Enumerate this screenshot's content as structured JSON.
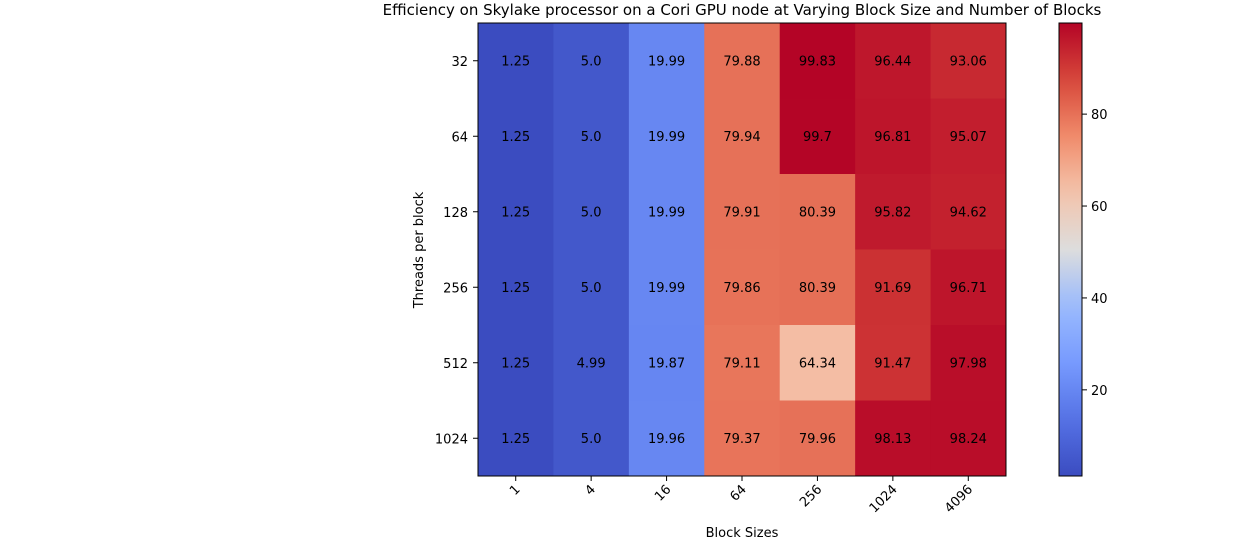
{
  "chart_data": {
    "type": "heatmap",
    "title": "Efficiency on Skylake processor on a Cori GPU node at Varying Block Size and Number of Blocks",
    "xlabel": "Block Sizes",
    "ylabel": "Threads per block",
    "x_categories": [
      "1",
      "4",
      "16",
      "64",
      "256",
      "1024",
      "4096"
    ],
    "y_categories": [
      "32",
      "64",
      "128",
      "256",
      "512",
      "1024"
    ],
    "values": [
      [
        1.25,
        5.0,
        19.99,
        79.88,
        99.83,
        96.44,
        93.06
      ],
      [
        1.25,
        5.0,
        19.99,
        79.94,
        99.7,
        96.81,
        95.07
      ],
      [
        1.25,
        5.0,
        19.99,
        79.91,
        80.39,
        95.82,
        94.62
      ],
      [
        1.25,
        5.0,
        19.99,
        79.86,
        80.39,
        91.69,
        96.71
      ],
      [
        1.25,
        4.99,
        19.87,
        79.11,
        64.34,
        91.47,
        97.98
      ],
      [
        1.25,
        5.0,
        19.96,
        79.37,
        79.96,
        98.13,
        98.24
      ]
    ],
    "value_labels": [
      [
        "1.25",
        "5.0",
        "19.99",
        "79.88",
        "99.83",
        "96.44",
        "93.06"
      ],
      [
        "1.25",
        "5.0",
        "19.99",
        "79.94",
        "99.7",
        "96.81",
        "95.07"
      ],
      [
        "1.25",
        "5.0",
        "19.99",
        "79.91",
        "80.39",
        "95.82",
        "94.62"
      ],
      [
        "1.25",
        "5.0",
        "19.99",
        "79.86",
        "80.39",
        "91.69",
        "96.71"
      ],
      [
        "1.25",
        "4.99",
        "19.87",
        "79.11",
        "64.34",
        "91.47",
        "97.98"
      ],
      [
        "1.25",
        "5.0",
        "19.96",
        "79.37",
        "79.96",
        "98.13",
        "98.24"
      ]
    ],
    "colormap": "coolwarm",
    "colorbar": {
      "range": [
        1.25,
        99.83
      ],
      "ticks": [
        20,
        40,
        60,
        80
      ],
      "tick_labels": [
        "20",
        "40",
        "60",
        "80"
      ]
    },
    "grid": false
  }
}
